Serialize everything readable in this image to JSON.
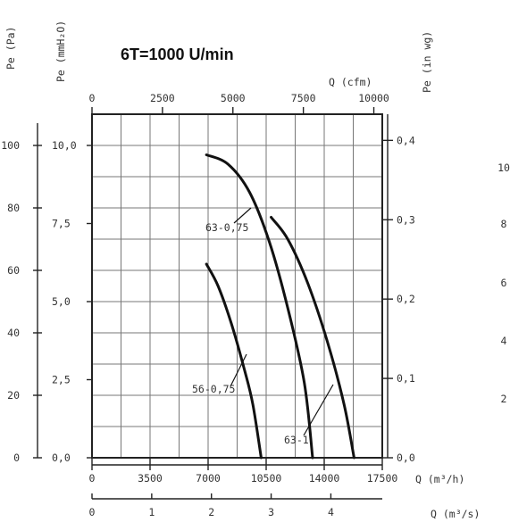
{
  "chart_data": {
    "type": "line",
    "title": "6T=1000 U/min",
    "axes": {
      "bottom_m3h": {
        "label": "Q (m³/h)",
        "ticks": [
          "0",
          "3500",
          "7000",
          "10500",
          "14000",
          "17500"
        ],
        "range": [
          0,
          17500
        ]
      },
      "bottom_m3s": {
        "label": "Q (m³/s)",
        "ticks": [
          "0",
          "1",
          "2",
          "3",
          "4"
        ],
        "range": [
          0,
          4.861
        ]
      },
      "top_cfm": {
        "label": "Q (cfm)",
        "ticks": [
          "0",
          "2500",
          "5000",
          "7500",
          "10000"
        ],
        "range": [
          0,
          10300
        ]
      },
      "left_pa": {
        "label": "Pe (Pa)",
        "ticks": [
          "0",
          "20",
          "40",
          "60",
          "80",
          "100"
        ],
        "range": [
          0,
          110
        ]
      },
      "left_mmh2o": {
        "label": "Pe (mmH₂O)",
        "ticks": [
          "0,0",
          "2,5",
          "5,0",
          "7,5",
          "10,0"
        ],
        "range": [
          0,
          11.0
        ]
      },
      "right_inwg": {
        "label": "Pe (in wg)",
        "ticks": [
          "0,0",
          "0,1",
          "0,2",
          "0,3",
          "0,4"
        ],
        "range": [
          0,
          0.433
        ]
      },
      "far_right": {
        "ticks": [
          "10",
          "8",
          "6",
          "4",
          "2"
        ]
      }
    },
    "grid": true,
    "x_unit": "m3/h",
    "y_unit": "Pa",
    "series": [
      {
        "name": "56-0,75",
        "x": [
          6900,
          7600,
          8400,
          9200,
          9700,
          10200
        ],
        "y": [
          62,
          55,
          43,
          28,
          17,
          0
        ]
      },
      {
        "name": "63-0,75",
        "x": [
          6900,
          8200,
          9500,
          10700,
          11800,
          12800,
          13300
        ],
        "y": [
          97,
          94,
          85,
          69,
          48,
          24,
          0
        ]
      },
      {
        "name": "63-1",
        "x": [
          10800,
          11800,
          13000,
          14200,
          15200,
          15800
        ],
        "y": [
          77,
          70,
          56,
          37,
          17,
          0
        ]
      }
    ],
    "labels": [
      {
        "text": "56-0,75",
        "series": "56-0,75"
      },
      {
        "text": "63-0,75",
        "series": "63-0,75"
      },
      {
        "text": "63-1",
        "series": "63-1"
      }
    ]
  }
}
